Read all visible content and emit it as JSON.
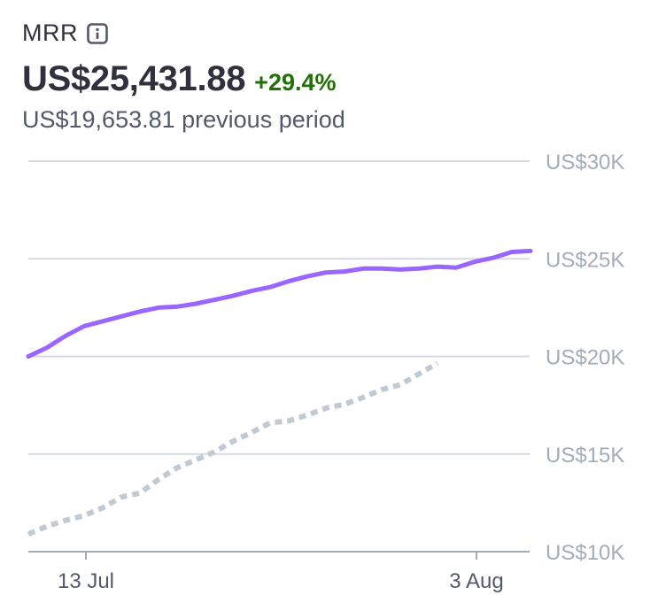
{
  "metric": {
    "name": "MRR",
    "value": "US$25,431.88",
    "change": "+29.4%",
    "previous": "US$19,653.81 previous period",
    "info_icon": "info-icon"
  },
  "colors": {
    "current": "#9966ff",
    "previous": "#c1c9d2",
    "gridline": "#d5dbe1",
    "axis_label": "#a3acb9",
    "positive_change": "#217005"
  },
  "chart_data": {
    "type": "line",
    "x_ticks": [
      "13 Jul",
      "3 Aug"
    ],
    "y_tick_labels": [
      "US$30K",
      "US$25K",
      "US$20K",
      "US$15K",
      "US$10K"
    ],
    "y_tick_values": [
      30000,
      25000,
      20000,
      15000,
      10000
    ],
    "ylim": [
      10000,
      30000
    ],
    "grid": true,
    "series": [
      {
        "key": "current",
        "style": "solid",
        "values": [
          20000,
          20450,
          21050,
          21550,
          21800,
          22050,
          22300,
          22500,
          22550,
          22700,
          22900,
          23100,
          23350,
          23550,
          23850,
          24100,
          24300,
          24350,
          24500,
          24500,
          24450,
          24500,
          24600,
          24550,
          24850,
          25050,
          25350,
          25400
        ]
      },
      {
        "key": "previous",
        "style": "dotted",
        "values": [
          10900,
          11300,
          11600,
          11850,
          12250,
          12800,
          13000,
          13700,
          14300,
          14700,
          15100,
          15650,
          16100,
          16600,
          16700,
          17000,
          17350,
          17550,
          17900,
          18300,
          18550,
          19100,
          19650
        ]
      }
    ]
  }
}
